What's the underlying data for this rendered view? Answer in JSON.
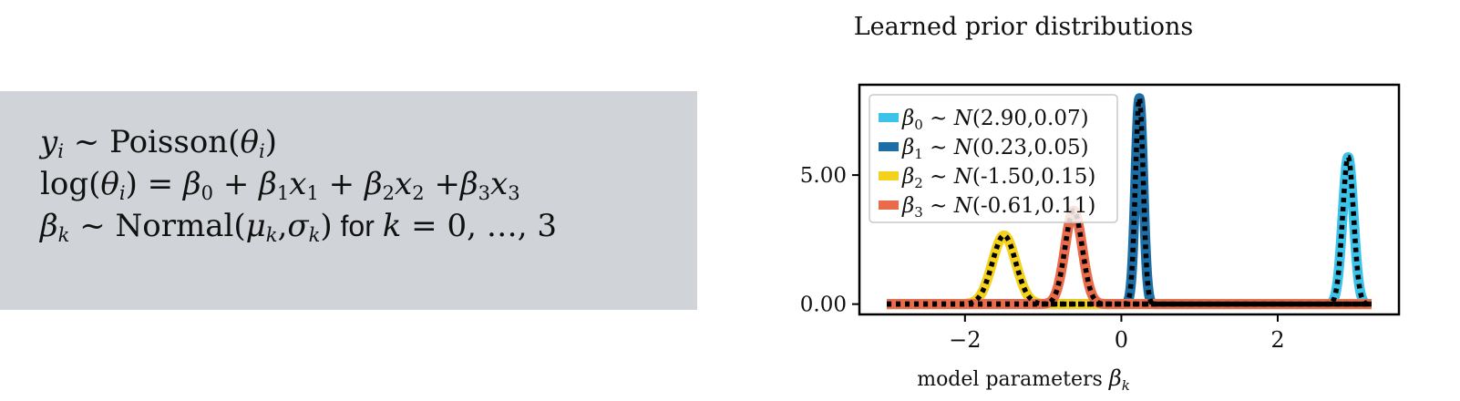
{
  "model": {
    "line1": {
      "lhs": "y",
      "lhs_sub": "i",
      "rel": " ~ ",
      "rhs": "Poisson(",
      "arg": "θ",
      "arg_sub": "i",
      "close": ")"
    },
    "line2": {
      "func": "log(",
      "arg": "θ",
      "arg_sub": "i",
      "close": ")",
      "eq": " = ",
      "t0": "β",
      "t0s": "0",
      "plus1": " + ",
      "t1": "β",
      "t1s": "1",
      "x1": "x",
      "x1s": "1",
      "plus2": " + ",
      "t2": "β",
      "t2s": "2",
      "x2": "x",
      "x2s": "2",
      "plus3": " +",
      "t3": "β",
      "t3s": "3",
      "x3": "x",
      "x3s": "3"
    },
    "line3": {
      "lhs": "β",
      "lhs_sub": "k",
      "rel": " ~ ",
      "rhs": "Normal(",
      "mu": "μ",
      "mu_sub": "k",
      "comma": ",",
      "sigma": "σ",
      "sigma_sub": "k",
      "close": ")",
      "for_text": " for ",
      "k": "k",
      "range": " = 0, …, 3"
    }
  },
  "chart_data": {
    "type": "line",
    "title": "Learned prior distributions",
    "xlabel": "model parameters βk",
    "ylabel": "",
    "xlim": [
      -3.35,
      3.55
    ],
    "ylim": [
      -0.4,
      8.5
    ],
    "x_ticks": [
      -2,
      0,
      2
    ],
    "x_tick_labels": [
      "−2",
      "0",
      "2"
    ],
    "y_ticks": [
      0,
      5
    ],
    "y_tick_labels": [
      "0.00",
      "5.00"
    ],
    "grid": false,
    "legend_position": "top-left",
    "x_range": [
      -3,
      3.2
    ],
    "series": [
      {
        "name": "β0 ∼ N(2.90,0.07)",
        "mu": 2.9,
        "sigma": 0.07,
        "color": "#3cc3ea"
      },
      {
        "name": "β1 ∼ N(0.23,0.05)",
        "mu": 0.23,
        "sigma": 0.05,
        "color": "#1c6fa6"
      },
      {
        "name": "β2 ∼ N(-1.50,0.15)",
        "mu": -1.5,
        "sigma": 0.15,
        "color": "#f4d21b"
      },
      {
        "name": "β3 ∼ N(-0.61,0.11)",
        "mu": -0.61,
        "sigma": 0.11,
        "color": "#ea6a4c"
      }
    ],
    "legend_entries": [
      {
        "sym": "β",
        "sub": "0",
        "rest": " ∼ ",
        "dist": "N",
        "params": "(2.90,0.07)"
      },
      {
        "sym": "β",
        "sub": "1",
        "rest": " ∼ ",
        "dist": "N",
        "params": "(0.23,0.05)"
      },
      {
        "sym": "β",
        "sub": "2",
        "rest": " ∼ ",
        "dist": "N",
        "params": "(-1.50,0.15)"
      },
      {
        "sym": "β",
        "sub": "3",
        "rest": " ∼ ",
        "dist": "N",
        "params": "(-0.61,0.11)"
      }
    ],
    "overlay_style": "black dotted"
  }
}
